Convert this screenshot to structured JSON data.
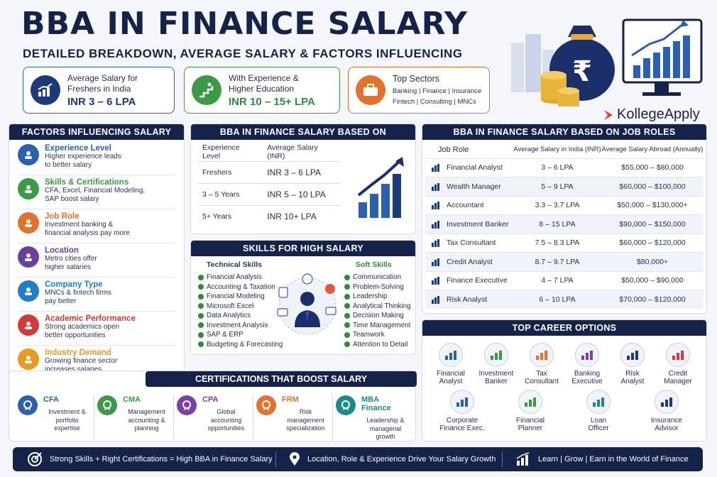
{
  "header": {
    "title": "BBA IN FINANCE SALARY",
    "subtitle": "DETAILED BREAKDOWN, AVERAGE SALARY & FACTORS INFLUENCING",
    "brand": "KollegeApply"
  },
  "top_cards": [
    {
      "label1": "Average Salary for",
      "label2": "Freshers in India",
      "value": "INR 3 – 6 LPA",
      "color": "#1b3a7a"
    },
    {
      "label1": "With Experience &",
      "label2": "Higher Education",
      "value": "INR 10 – 15+ LPA",
      "color": "#3a9a45"
    },
    {
      "label1": "Top Sectors",
      "label2": "Banking | Finance | Insurance",
      "label3": "Fintech | Consulting | MNCs",
      "color": "#e6712b"
    }
  ],
  "factors": {
    "heading": "FACTORS INFLUENCING SALARY",
    "items": [
      {
        "title": "Experience Level",
        "desc1": "Higher experience leads",
        "desc2": "to better salary",
        "color": "#2b5fb0"
      },
      {
        "title": "Skills & Certifications",
        "desc1": "CFA, Excel, Financial Modeling,",
        "desc2": "SAP boost salary",
        "color": "#3a9a45"
      },
      {
        "title": "Job Role",
        "desc1": "Investment banking &",
        "desc2": "financial analysis pay more",
        "color": "#e6712b"
      },
      {
        "title": "Location",
        "desc1": "Metro cities offer",
        "desc2": "higher salaries",
        "color": "#6b3fa0"
      },
      {
        "title": "Company Type",
        "desc1": "MNCs & fintech firms",
        "desc2": "pay better",
        "color": "#1f7fc7"
      },
      {
        "title": "Academic Performance",
        "desc1": "Strong academics open",
        "desc2": "better opportunities",
        "color": "#d43a3a"
      },
      {
        "title": "Industry Demand",
        "desc1": "Growing finance sector",
        "desc2": "increases salaries",
        "color": "#e89b20"
      }
    ]
  },
  "experience": {
    "heading": "BBA IN FINANCE SALARY BASED ON EXPERIENCE",
    "col1": "Experience Level",
    "col2": "Average Salary (INR)",
    "rows": [
      {
        "level": "Freshers",
        "salary": "INR 3 – 6 LPA"
      },
      {
        "level": "3 – 5 Years",
        "salary": "INR 5 – 10 LPA"
      },
      {
        "level": "5+ Years",
        "salary": "INR 10+ LPA"
      }
    ]
  },
  "skills": {
    "heading": "SKILLS FOR HIGH SALARY",
    "technical_label": "Technical Skills",
    "soft_label": "Soft Skills",
    "technical": [
      "Financial Analysis",
      "Accounting & Taxation",
      "Financial Modeling",
      "Microsoft Excel",
      "Data Analytics",
      "Investment Analysis",
      "SAP & ERP",
      "Budgeting & Forecasting"
    ],
    "soft": [
      "Communication",
      "Problem-Solving",
      "Leadership",
      "Analytical Thinking",
      "Decision Making",
      "Time Management",
      "Teamwork",
      "Attention to Detail"
    ]
  },
  "job_roles": {
    "heading": "BBA IN FINANCE SALARY BASED ON JOB ROLES",
    "col1": "Job Role",
    "col2": "Average Salary in India (INR)",
    "col3": "Average Salary Abroad (Annually)",
    "rows": [
      {
        "role": "Financial Analyst",
        "india": "3 – 6 LPA",
        "abroad": "$55,000 – $80,000"
      },
      {
        "role": "Wealth Manager",
        "india": "5 – 9 LPA",
        "abroad": "$60,000 – $100,000"
      },
      {
        "role": "Accountant",
        "india": "3.3 – 3.7 LPA",
        "abroad": "$50,000 – $130,000+"
      },
      {
        "role": "Investment Banker",
        "india": "8 – 15 LPA",
        "abroad": "$90,000 – $150,000"
      },
      {
        "role": "Tax Consultant",
        "india": "7.5 – 8.3 LPA",
        "abroad": "$60,000 – $120,000"
      },
      {
        "role": "Credit Analyst",
        "india": "8.7 – 9.7 LPA",
        "abroad": "$80,000+"
      },
      {
        "role": "Finance Executive",
        "india": "4 – 7 LPA",
        "abroad": "$50,000 – $90,000"
      },
      {
        "role": "Risk Analyst",
        "india": "6 – 10 LPA",
        "abroad": "$70,000 – $120,000"
      }
    ]
  },
  "certifications": {
    "heading": "CERTIFICATIONS THAT BOOST SALARY",
    "items": [
      {
        "name": "CFA",
        "d1": "Investment &",
        "d2": "portfolio expertise",
        "color": "#2b5fb0"
      },
      {
        "name": "CMA",
        "d1": "Management",
        "d2": "accounting & planning",
        "color": "#3a9a45"
      },
      {
        "name": "CPA",
        "d1": "Global accounting",
        "d2": "opportunities",
        "color": "#7b3fa8"
      },
      {
        "name": "FRM",
        "d1": "Risk management",
        "d2": "specialization",
        "color": "#e6712b"
      },
      {
        "name": "MBA Finance",
        "d1": "Leadership &",
        "d2": "managerial growth",
        "color": "#1a8a8a"
      }
    ]
  },
  "careers": {
    "heading": "TOP CAREER OPTIONS",
    "items": [
      {
        "l1": "Financial",
        "l2": "Analyst"
      },
      {
        "l1": "Investment",
        "l2": "Banker"
      },
      {
        "l1": "Tax",
        "l2": "Consultant"
      },
      {
        "l1": "Banking",
        "l2": "Executive"
      },
      {
        "l1": "Risk",
        "l2": "Analyst"
      },
      {
        "l1": "Credit",
        "l2": "Manager"
      },
      {
        "l1": "Corporate",
        "l2": "Finance Exec."
      },
      {
        "l1": "Financial",
        "l2": "Planner"
      },
      {
        "l1": "Loan",
        "l2": "Officer"
      },
      {
        "l1": "Insurance",
        "l2": "Advisor"
      }
    ]
  },
  "footer": {
    "item1": "Strong Skills  +  Right Certifications  =  High BBA in Finance Salary",
    "item2": "Location, Role & Experience Drive Your Salary Growth",
    "item3": "Learn | Grow | Earn in the World of Finance"
  }
}
